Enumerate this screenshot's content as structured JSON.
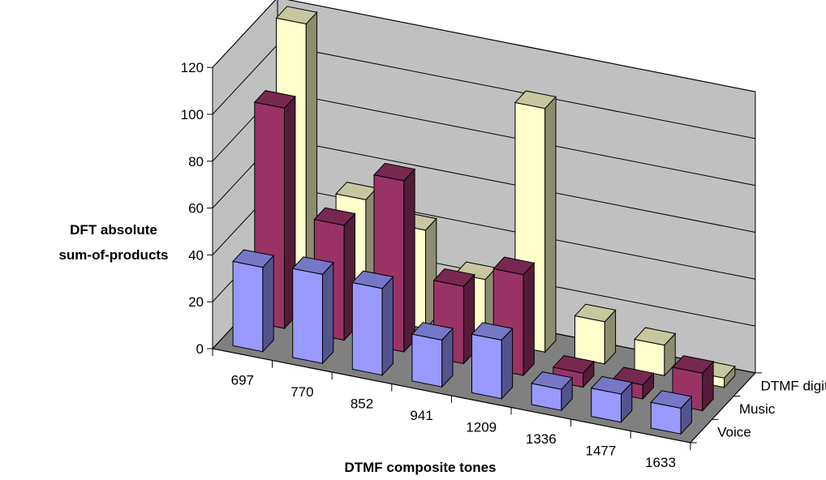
{
  "chart_data": {
    "type": "bar",
    "subtype": "3d-column",
    "title": "",
    "xlabel": "DTMF composite tones",
    "ylabel_lines": [
      "DFT absolute",
      "sum-of-products"
    ],
    "ylim": [
      0,
      120
    ],
    "yticks": [
      0,
      20,
      40,
      60,
      80,
      100,
      120
    ],
    "categories": [
      "697",
      "770",
      "852",
      "941",
      "1209",
      "1336",
      "1477",
      "1633"
    ],
    "grid": true,
    "series": [
      {
        "name": "Voice",
        "color": "#9999ff",
        "values": [
          36,
          38,
          37,
          20,
          25,
          9,
          12,
          11
        ]
      },
      {
        "name": "Music",
        "color": "#993366",
        "values": [
          94,
          49,
          73,
          33,
          43,
          6,
          6,
          16
        ]
      },
      {
        "name": "DTMF digit",
        "color": "#ffffcc",
        "values": [
          120,
          50,
          42,
          26,
          104,
          18,
          13,
          4
        ]
      }
    ],
    "colors": {
      "wall": "#c0c0c0",
      "floor": "#808080",
      "edge": "#000000"
    }
  }
}
